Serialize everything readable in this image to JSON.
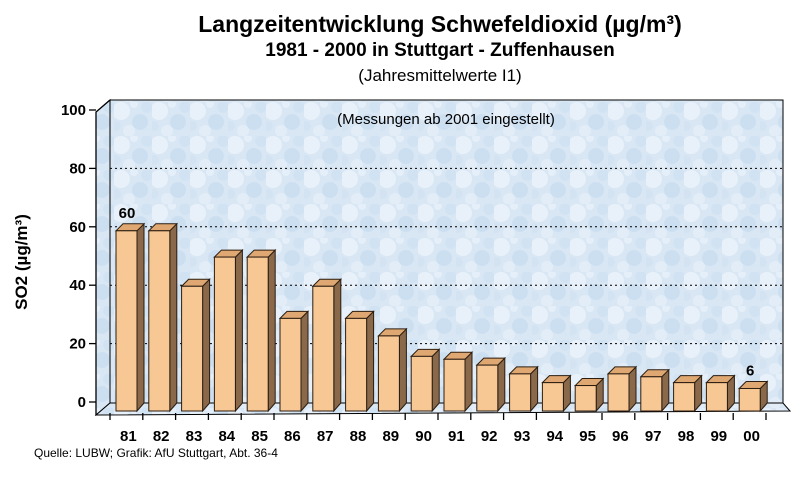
{
  "header": {
    "title": "Langzeitentwicklung Schwefeldioxid (µg/m³)",
    "subtitle": "1981 - 2000 in Stuttgart - Zuffenhausen",
    "subsubtitle": "(Jahresmittelwerte I1)"
  },
  "footer": {
    "source": "Quelle: LUBW; Grafik: AfU Stuttgart, Abt. 36-4"
  },
  "chart_data": {
    "type": "bar",
    "title": "Langzeitentwicklung Schwefeldioxid (µg/m³)",
    "subtitle": "1981 - 2000 in Stuttgart - Zuffenhausen",
    "note": "(Jahresmittelwerte I1)",
    "categories": [
      "81",
      "82",
      "83",
      "84",
      "85",
      "86",
      "87",
      "88",
      "89",
      "90",
      "91",
      "92",
      "93",
      "94",
      "95",
      "96",
      "97",
      "98",
      "99",
      "00"
    ],
    "values": [
      60,
      60,
      41,
      51,
      51,
      30,
      41,
      30,
      24,
      17,
      16,
      14,
      11,
      8,
      7,
      11,
      10,
      8,
      8,
      6
    ],
    "xlabel": "",
    "ylabel": "SO2 (µg/m³)",
    "ylim": [
      0,
      100
    ],
    "yticks": [
      0,
      20,
      40,
      60,
      80,
      100
    ],
    "grid": "horizontal-dashed",
    "legend": "none",
    "style": "3d-bars",
    "annotation_inside": "(Messungen ab 2001 eingestellt)",
    "annotation_color": "#2222cc",
    "bar_labels": [
      {
        "category": "81",
        "label": "60"
      },
      {
        "category": "00",
        "label": "6"
      }
    ],
    "colors": {
      "bar_front": "#f8c894",
      "bar_side": "#8a684a",
      "bar_top": "#dfa872",
      "bar_outline": "#2b1d10",
      "plot_bg": "#d9e7f5",
      "gridline": "#000000"
    }
  }
}
